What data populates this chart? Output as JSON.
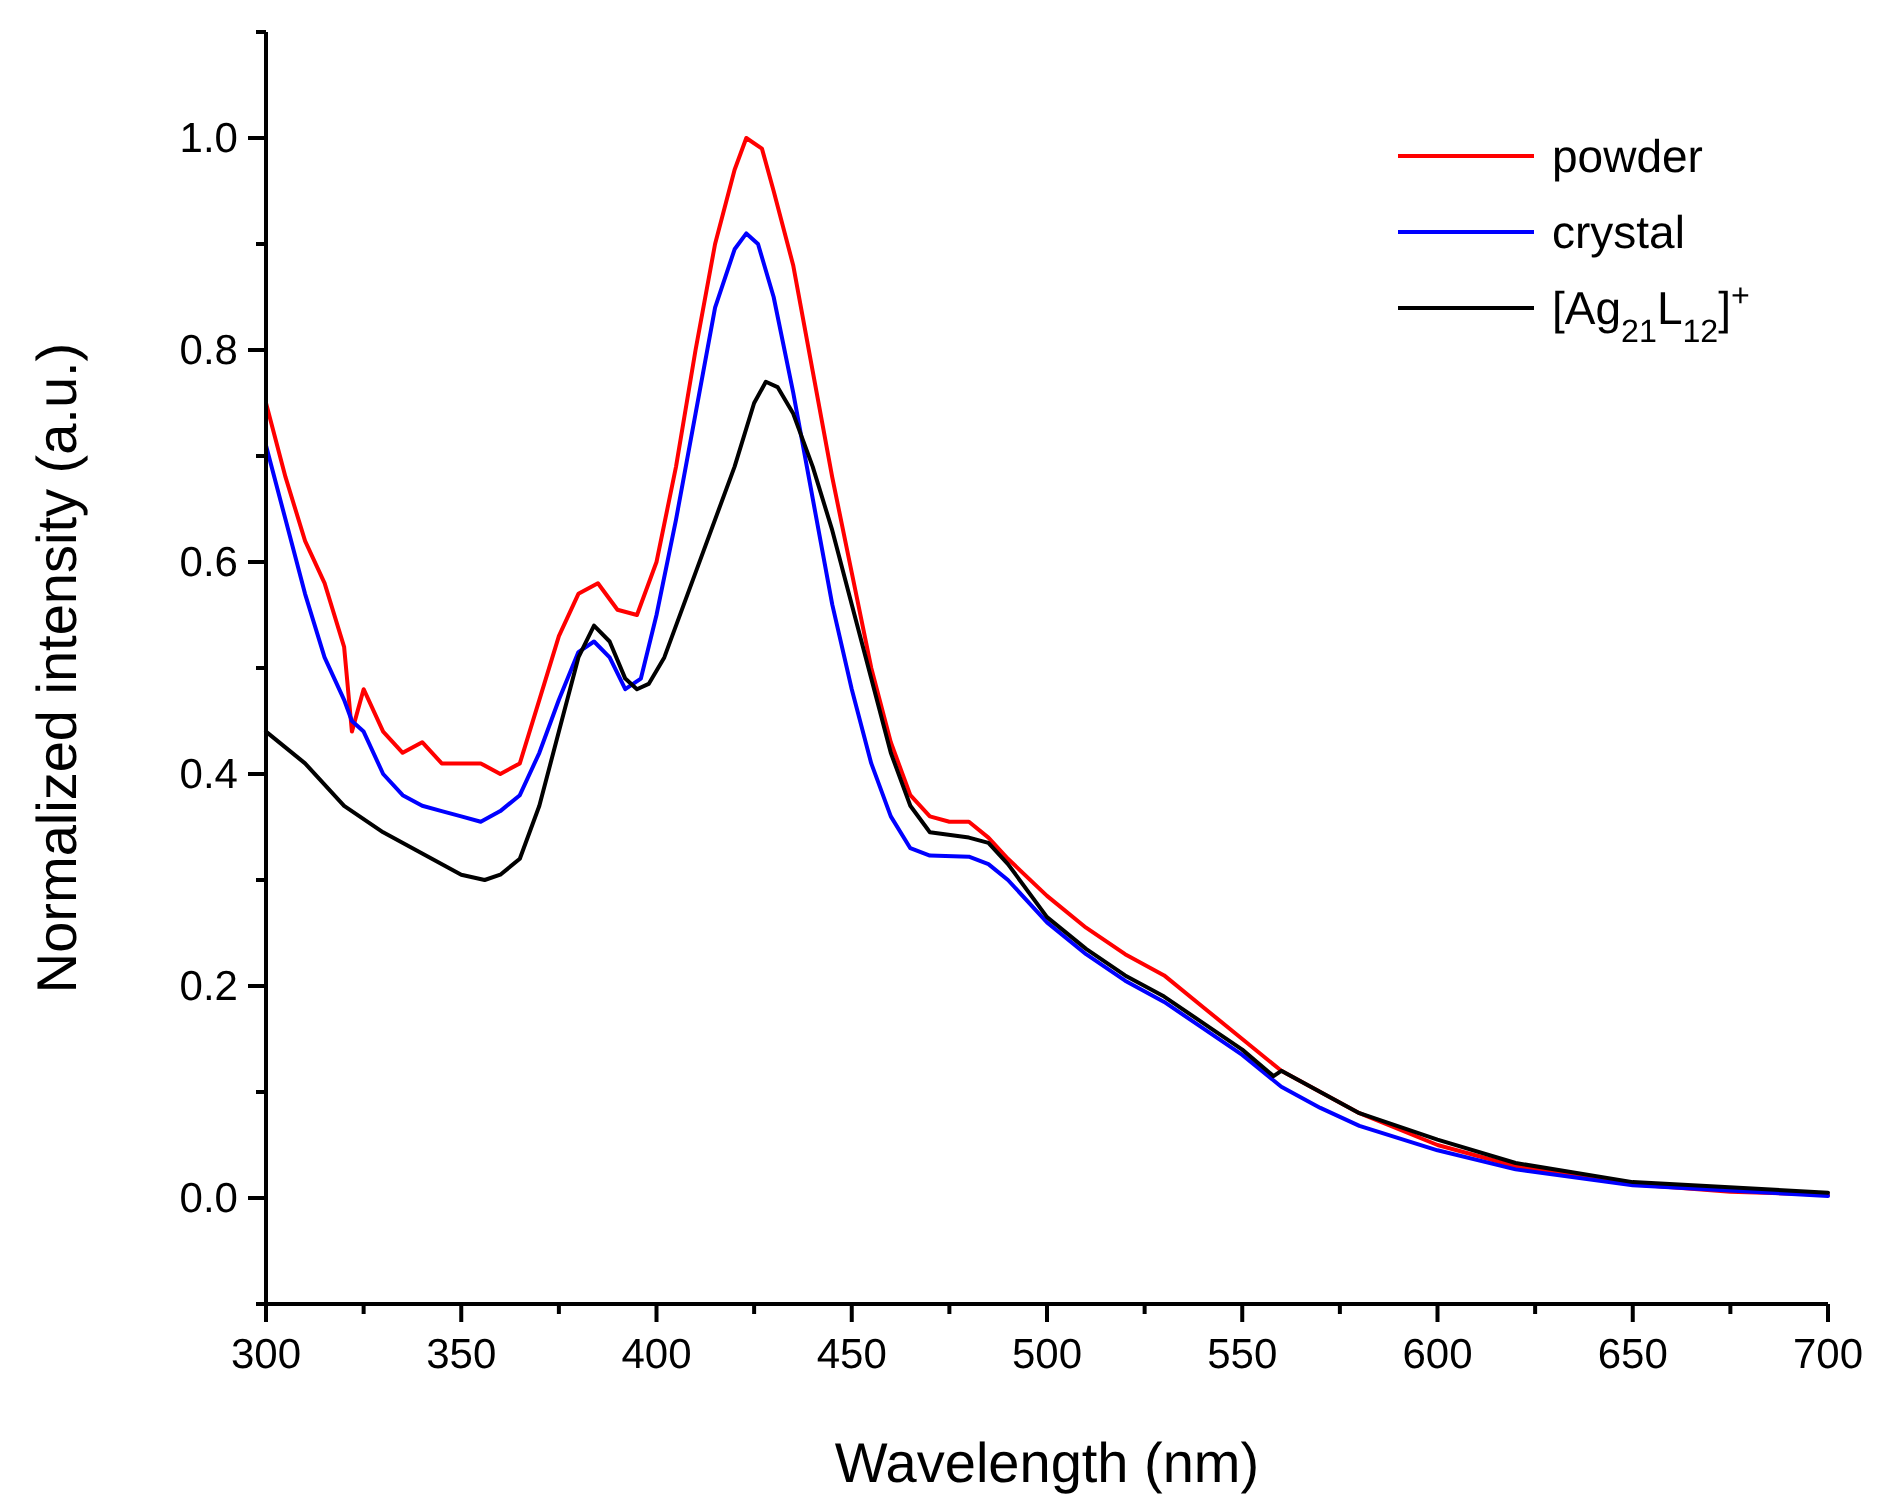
{
  "chart_data": {
    "type": "line",
    "xlabel": "Wavelength (nm)",
    "ylabel": "Normalized intensity (a.u.)",
    "xlim": [
      300,
      700
    ],
    "ylim": [
      -0.1,
      1.1
    ],
    "xticks": [
      300,
      {
        "value": 325,
        "label": null
      },
      350,
      {
        "value": 375,
        "label": null
      },
      400,
      {
        "value": 425,
        "label": null
      },
      450,
      {
        "value": 475,
        "label": null
      },
      500,
      {
        "value": 525,
        "label": null
      },
      550,
      {
        "value": 575,
        "label": null
      },
      600,
      {
        "value": 625,
        "label": null
      },
      650,
      {
        "value": 675,
        "label": null
      },
      700
    ],
    "yticks": [
      {
        "value": -0.1,
        "label": null
      },
      {
        "value": 0,
        "label": "0.0"
      },
      {
        "value": 0.1,
        "label": null
      },
      0.2,
      {
        "value": 0.3,
        "label": null
      },
      0.4,
      {
        "value": 0.5,
        "label": null
      },
      0.6,
      {
        "value": 0.7,
        "label": null
      },
      0.8,
      {
        "value": 0.9,
        "label": null
      },
      {
        "value": 1,
        "label": "1.0"
      },
      {
        "value": 1.1,
        "label": null
      }
    ],
    "grid": false,
    "legend": "top right",
    "line_style": "solid",
    "series": [
      {
        "name": "powder",
        "color": "#ff0000",
        "x": [
          300,
          305,
          310,
          315,
          320,
          322,
          325,
          330,
          335,
          340,
          345,
          350,
          355,
          360,
          365,
          370,
          375,
          380,
          385,
          390,
          395,
          400,
          405,
          410,
          415,
          420,
          423,
          427,
          430,
          435,
          440,
          445,
          450,
          455,
          460,
          465,
          470,
          475,
          480,
          485,
          490,
          500,
          510,
          520,
          530,
          540,
          550,
          560,
          570,
          580,
          600,
          620,
          650,
          675,
          700
        ],
        "values": [
          0.75,
          0.68,
          0.62,
          0.58,
          0.52,
          0.44,
          0.48,
          0.44,
          0.42,
          0.43,
          0.41,
          0.41,
          0.41,
          0.4,
          0.41,
          0.47,
          0.53,
          0.57,
          0.58,
          0.555,
          0.55,
          0.6,
          0.69,
          0.8,
          0.9,
          0.97,
          1.0,
          0.99,
          0.95,
          0.88,
          0.78,
          0.68,
          0.59,
          0.5,
          0.43,
          0.38,
          0.36,
          0.355,
          0.355,
          0.34,
          0.32,
          0.285,
          0.255,
          0.23,
          0.21,
          0.18,
          0.15,
          0.12,
          0.1,
          0.08,
          0.05,
          0.03,
          0.013,
          0.006,
          0.003
        ]
      },
      {
        "name": "crystal",
        "color": "#0000ff",
        "x": [
          300,
          305,
          310,
          315,
          320,
          322,
          325,
          330,
          335,
          340,
          345,
          350,
          355,
          360,
          365,
          370,
          375,
          380,
          384,
          388,
          392,
          396,
          400,
          405,
          410,
          415,
          420,
          423,
          426,
          430,
          435,
          440,
          445,
          450,
          455,
          460,
          465,
          470,
          480,
          485,
          490,
          500,
          510,
          520,
          530,
          540,
          550,
          560,
          570,
          580,
          600,
          620,
          650,
          700
        ],
        "values": [
          0.71,
          0.64,
          0.57,
          0.51,
          0.47,
          0.45,
          0.44,
          0.4,
          0.38,
          0.37,
          0.365,
          0.36,
          0.355,
          0.365,
          0.38,
          0.42,
          0.47,
          0.515,
          0.525,
          0.51,
          0.48,
          0.49,
          0.55,
          0.64,
          0.74,
          0.84,
          0.895,
          0.91,
          0.9,
          0.85,
          0.76,
          0.66,
          0.56,
          0.48,
          0.41,
          0.36,
          0.33,
          0.323,
          0.322,
          0.315,
          0.3,
          0.26,
          0.23,
          0.205,
          0.185,
          0.16,
          0.135,
          0.105,
          0.085,
          0.068,
          0.045,
          0.027,
          0.012,
          0.002
        ]
      },
      {
        "name": "[Ag$_{21}$L$_{12}$]$^{+}$",
        "color": "#000000",
        "x": [
          300,
          310,
          320,
          330,
          340,
          350,
          356,
          360,
          365,
          370,
          375,
          380,
          384,
          388,
          392,
          395,
          398,
          402,
          410,
          420,
          425,
          428,
          431,
          435,
          440,
          445,
          450,
          455,
          460,
          465,
          470,
          480,
          485,
          490,
          500,
          510,
          520,
          530,
          540,
          550,
          558,
          560,
          570,
          580,
          600,
          620,
          650,
          700
        ],
        "values": [
          0.44,
          0.41,
          0.37,
          0.345,
          0.325,
          0.305,
          0.3,
          0.305,
          0.32,
          0.37,
          0.44,
          0.51,
          0.54,
          0.525,
          0.49,
          0.48,
          0.485,
          0.51,
          0.59,
          0.69,
          0.75,
          0.77,
          0.765,
          0.74,
          0.69,
          0.63,
          0.56,
          0.49,
          0.42,
          0.37,
          0.345,
          0.34,
          0.335,
          0.315,
          0.265,
          0.235,
          0.21,
          0.19,
          0.165,
          0.14,
          0.115,
          0.12,
          0.1,
          0.08,
          0.055,
          0.033,
          0.015,
          0.005
        ]
      }
    ]
  }
}
